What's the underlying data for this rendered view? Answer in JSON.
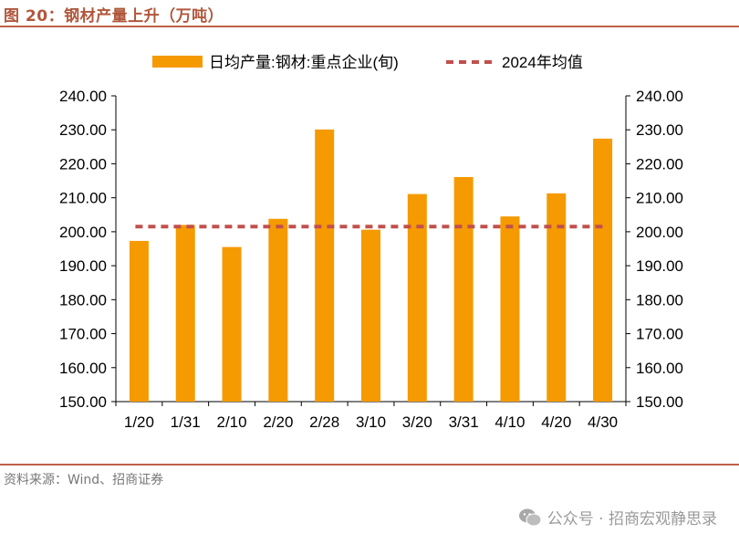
{
  "figure": {
    "title": "图 20：钢材产量上升（万吨）",
    "source": "资料来源：Wind、招商证券",
    "watermark": "公众号 · 招商宏观静思录"
  },
  "colors": {
    "bar": "#f59a00",
    "avg_line": "#c0504d",
    "accent": "#c0604a"
  },
  "chart_data": {
    "type": "bar",
    "categories": [
      "1/20",
      "1/31",
      "2/10",
      "2/20",
      "2/28",
      "3/10",
      "3/20",
      "3/31",
      "4/10",
      "4/20",
      "4/30"
    ],
    "series": [
      {
        "name": "日均产量:钢材:重点企业(旬)",
        "type": "bar",
        "values": [
          197.3,
          202.0,
          195.5,
          203.8,
          230.1,
          200.6,
          211.1,
          216.1,
          204.5,
          211.3,
          227.4
        ]
      },
      {
        "name": "2024年均值",
        "type": "line",
        "style": "dashed",
        "values": [
          201.5,
          201.5,
          201.5,
          201.5,
          201.5,
          201.5,
          201.5,
          201.5,
          201.5,
          201.5,
          201.5
        ]
      }
    ],
    "ylim": [
      150,
      240
    ],
    "yticks": [
      "150.00",
      "160.00",
      "170.00",
      "180.00",
      "190.00",
      "200.00",
      "210.00",
      "220.00",
      "230.00",
      "240.00"
    ],
    "y2ticks": [
      "150.00",
      "160.00",
      "170.00",
      "180.00",
      "190.00",
      "200.00",
      "210.00",
      "220.00",
      "230.00",
      "240.00"
    ],
    "legend_position": "top-center",
    "grid": false
  }
}
